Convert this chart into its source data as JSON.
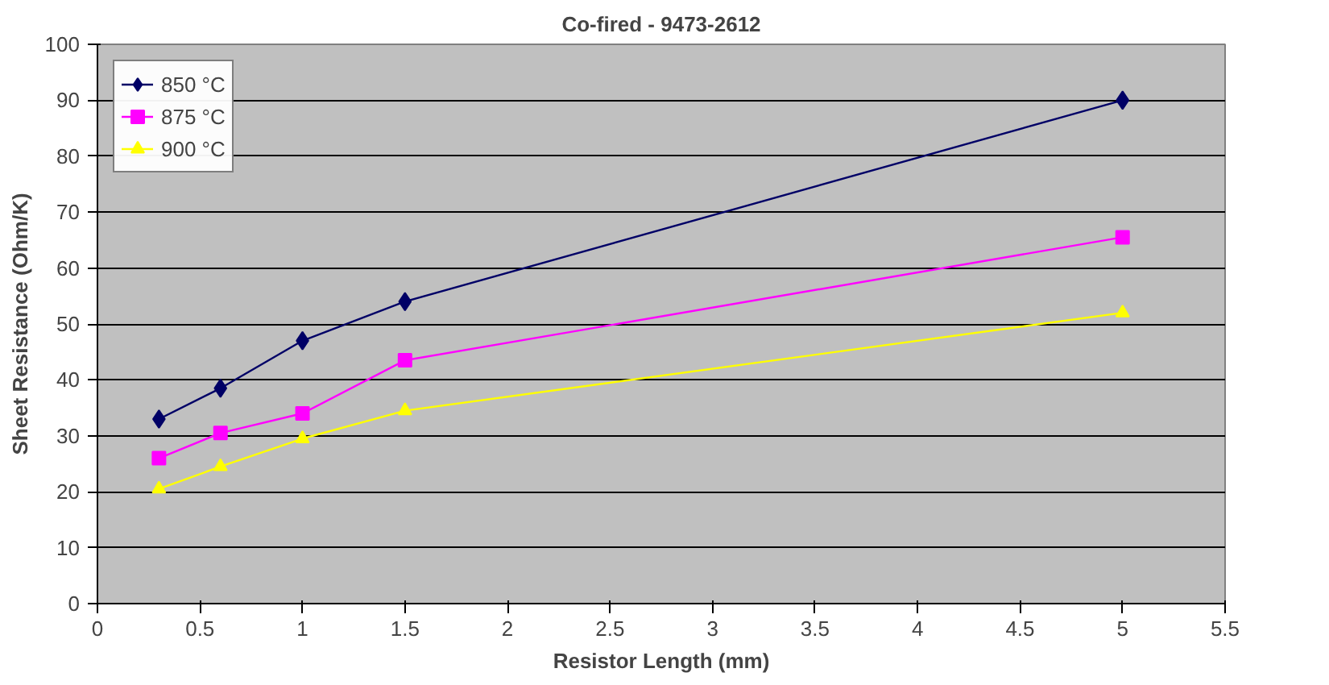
{
  "chart_data": {
    "type": "line",
    "title": "Co-fired - 9473-2612",
    "xlabel": "Resistor Length (mm)",
    "ylabel": "Sheet Resistance (Ohm/K)",
    "x": [
      0.3,
      0.6,
      1,
      1.5,
      5
    ],
    "series": [
      {
        "name": "850 °C",
        "color": "#000066",
        "marker": "diamond",
        "values": [
          33,
          38.5,
          47,
          54,
          90
        ]
      },
      {
        "name": "875 °C",
        "color": "#ff00ff",
        "marker": "square",
        "values": [
          26,
          30.5,
          34,
          43.5,
          65.5
        ]
      },
      {
        "name": "900 °C",
        "color": "#ffff00",
        "marker": "triangle",
        "values": [
          20.5,
          24.5,
          29.5,
          34.5,
          52
        ]
      }
    ],
    "xlim": [
      0,
      5.5
    ],
    "xticks": [
      0,
      0.5,
      1,
      1.5,
      2,
      2.5,
      3,
      3.5,
      4,
      4.5,
      5,
      5.5
    ],
    "ylim": [
      0,
      100
    ],
    "yticks": [
      0,
      10,
      20,
      30,
      40,
      50,
      60,
      70,
      80,
      90,
      100
    ],
    "grid": "y",
    "legend": "top left"
  }
}
